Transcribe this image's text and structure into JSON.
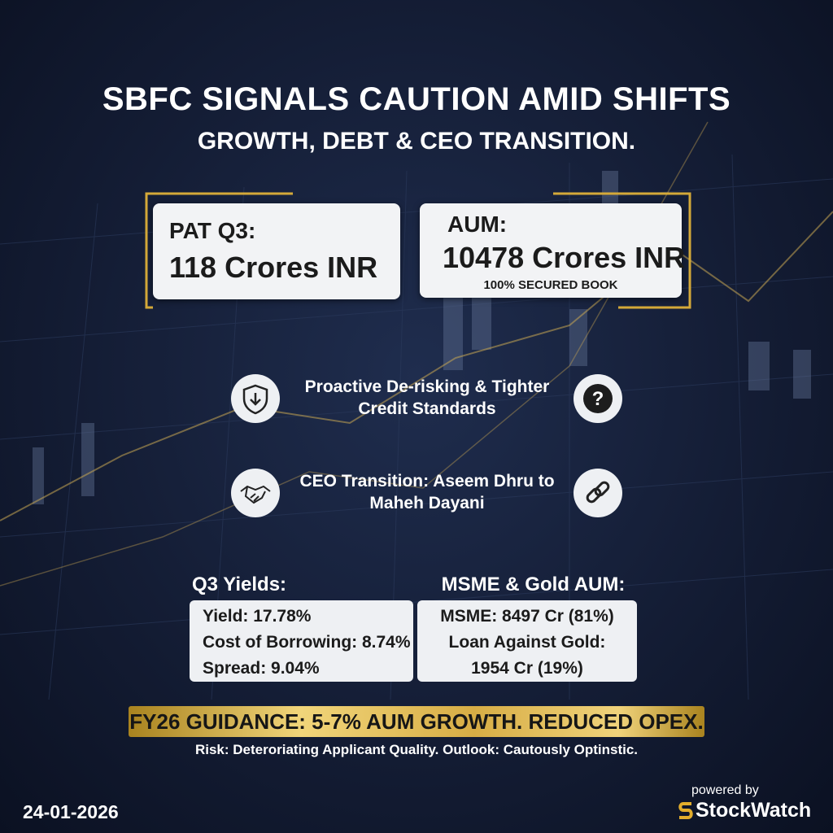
{
  "header": {
    "title": "SBFC SIGNALS CAUTION AMID SHIFTS",
    "subtitle": "GROWTH, DEBT & CEO TRANSITION."
  },
  "cards": [
    {
      "label": "PAT Q3:",
      "value": "118 Crores INR"
    },
    {
      "label": "AUM:",
      "value": "10478 Crores INR",
      "note": "100% SECURED BOOK"
    }
  ],
  "points": [
    "Proactive De-risking & Tighter Credit Standards",
    "CEO Transition: Aseem Dhru to Maheh Dayani"
  ],
  "panels": [
    {
      "title": "Q3 Yields:",
      "lines": [
        "Yield: 17.78%",
        "Cost of Borrowing: 8.74%",
        "Spread: 9.04%"
      ]
    },
    {
      "title": "MSME & Gold AUM:",
      "lines": [
        "MSME: 8497 Cr (81%)",
        "Loan Against Gold:",
        "1954 Cr (19%)"
      ]
    }
  ],
  "guidance": "FY26 GUIDANCE: 5-7% AUM GROWTH. REDUCED OPEX.",
  "risk": "Risk: Deteroriating Applicant Quality. Outlook: Cautously Optinstic.",
  "footer": {
    "date": "24-01-2026",
    "powered": "powered by",
    "brand": "StockWatch"
  }
}
